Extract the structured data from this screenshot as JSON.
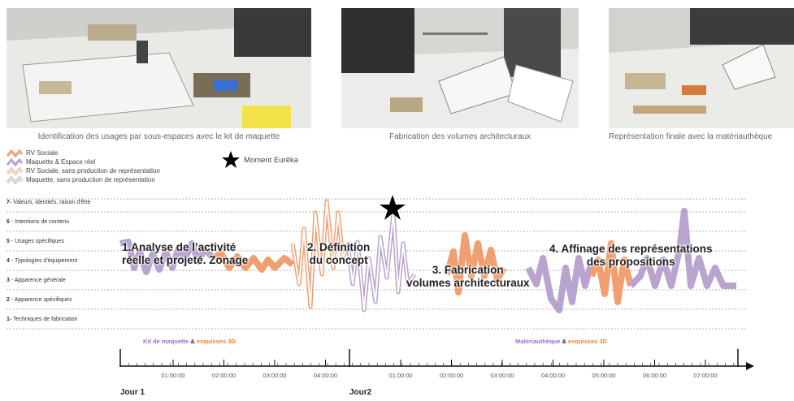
{
  "photos": [
    {
      "caption": "Identification des usages par sous-espaces avec le kit de maquette"
    },
    {
      "caption": "Fabrication des volumes architecturaux"
    },
    {
      "caption": "Représentation finale avec la matériauthèque"
    }
  ],
  "legend": [
    {
      "label": "RV Sociale",
      "color": "#f0a070",
      "style": "zigzag-thick"
    },
    {
      "label": "Maquette & Espace réel",
      "color": "#b9a3cf",
      "style": "zigzag-thick"
    },
    {
      "label": "RV Sociale, sans production de représentation",
      "color": "#f0a070",
      "style": "zigzag-outline"
    },
    {
      "label": "Maquette, sans production de représentation",
      "color": "#b9a3cf",
      "style": "zigzag-outline"
    }
  ],
  "eureka": {
    "label": "Moment Eurêka",
    "icon": "star-icon"
  },
  "levels": [
    {
      "num": "7-",
      "label": " Valeurs, identités, raison d'être"
    },
    {
      "num": "6",
      "label": " - Intentions de contenu"
    },
    {
      "num": "5",
      "label": " - Usages spécifiques"
    },
    {
      "num": "4",
      "label": " - Typologies d'équipement"
    },
    {
      "num": "3",
      "label": " - Apparence générale"
    },
    {
      "num": "2",
      "label": " - Apparence spécifiques"
    },
    {
      "num": "1-",
      "label": " Techniques de fabrication"
    }
  ],
  "phases": [
    {
      "line1": "1.Analyse de l’activité",
      "line2": "réelle et projeté. Zonage"
    },
    {
      "line1": "2. Définition",
      "line2": "du concept"
    },
    {
      "line1": "3. Fabrication",
      "line2": "volumes architecturaux"
    },
    {
      "line1": "4. Affinage des représentations",
      "line2": "des propositions"
    }
  ],
  "tools": [
    {
      "a": "Kit de maquette",
      "sep": " & ",
      "b": "esquisses 3D"
    },
    {
      "a": "Matériauthèque",
      "sep": " & ",
      "b": "esquisses 3D"
    }
  ],
  "timeline": {
    "day1_ticks": [
      "01:00:00",
      "02:00:00",
      "03:00:00",
      "04:00:00"
    ],
    "day2_ticks": [
      "01:00:00",
      "02:00:00",
      "03:00:00",
      "04:00:00",
      "05:00:00",
      "06:00:00",
      "07:00:00"
    ],
    "day1_label": "Jour 1",
    "day2_label": "Jour2"
  },
  "colors": {
    "orange": "#f0a070",
    "purple": "#b9a3cf",
    "purple_text": "#9b6fc4",
    "orange_text": "#e8892f"
  }
}
